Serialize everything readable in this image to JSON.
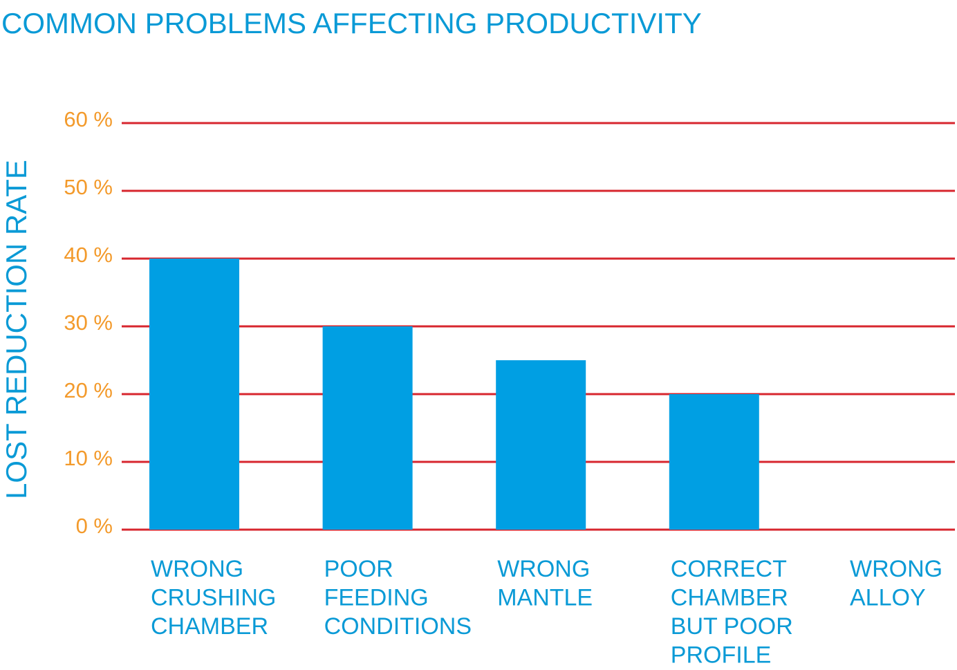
{
  "chart_data": {
    "type": "bar",
    "title": "COMMON PROBLEMS AFFECTING PRODUCTIVITY",
    "xlabel": "",
    "ylabel": "LOST REDUCTION RATE",
    "ylim": [
      0,
      60
    ],
    "yticks": [
      "0 %",
      "10 %",
      "20 %",
      "30 %",
      "40 %",
      "50 %",
      "60 %"
    ],
    "ytick_values": [
      0,
      10,
      20,
      30,
      40,
      50,
      60
    ],
    "grid": true,
    "categories": [
      [
        "WRONG",
        "CRUSHING",
        "CHAMBER"
      ],
      [
        "POOR",
        "FEEDING",
        "CONDITIONS"
      ],
      [
        "WRONG",
        "MANTLE"
      ],
      [
        "CORRECT",
        "CHAMBER",
        "BUT POOR",
        "PROFILE"
      ],
      [
        "WRONG",
        "ALLOY"
      ]
    ],
    "values": [
      40,
      30,
      25,
      20,
      0
    ],
    "colors": {
      "bar": "#009fe3",
      "grid": "#d7262e",
      "tick": "#f39a2b",
      "text": "#0a9ad6"
    }
  }
}
